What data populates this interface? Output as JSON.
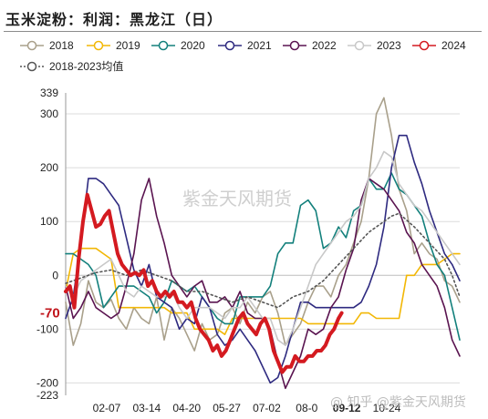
{
  "header": {
    "title": "玉米淀粉：利润：黑龙江（日）"
  },
  "watermark": {
    "center": "紫金天风期货",
    "corner": "@ 知乎 @紫金天风期货"
  },
  "chart_data": {
    "type": "line",
    "title": "玉米淀粉：利润：黑龙江（日）",
    "ylim": [
      -223,
      339
    ],
    "yticks": [
      "339",
      "300",
      "200",
      "100",
      "0",
      "-100",
      "-200",
      "-223"
    ],
    "xticks": [
      "02-07",
      "03-14",
      "04-20",
      "05-27",
      "07-02",
      "08-0",
      "09-12",
      "10-24"
    ],
    "x_range": [
      1,
      365
    ],
    "x_unit": "day of year",
    "legend_position": "top",
    "grid": "horizontal",
    "annotations": [
      {
        "text": "-70",
        "y": -70,
        "color": "#c0141b"
      },
      {
        "text": "09-12",
        "color": "#c0141b"
      }
    ],
    "series": [
      {
        "name": "2018",
        "color": "#a9a08b",
        "style": "solid",
        "x": [
          1,
          8,
          15,
          22,
          29,
          36,
          43,
          50,
          57,
          64,
          71,
          78,
          85,
          92,
          99,
          106,
          113,
          120,
          127,
          134,
          141,
          148,
          155,
          162,
          169,
          176,
          183,
          190,
          197,
          204,
          211,
          218,
          225,
          232,
          239,
          246,
          253,
          260,
          267,
          274,
          281,
          288,
          295,
          302,
          309,
          316,
          323,
          330,
          337,
          344,
          351,
          358,
          365
        ],
        "y": [
          -50,
          -130,
          -90,
          -10,
          -50,
          -60,
          -45,
          -80,
          -100,
          -60,
          -80,
          -90,
          -40,
          -120,
          -60,
          -80,
          -110,
          -140,
          -90,
          -120,
          -110,
          -70,
          -60,
          -90,
          -50,
          -70,
          -40,
          -30,
          -70,
          -130,
          -110,
          -90,
          -50,
          -20,
          -20,
          -40,
          0,
          20,
          60,
          100,
          180,
          300,
          330,
          260,
          160,
          120,
          40,
          60,
          40,
          30,
          -10,
          -20,
          -50
        ]
      },
      {
        "name": "2019",
        "color": "#f2b705",
        "style": "solid",
        "x": [
          1,
          8,
          15,
          22,
          29,
          36,
          43,
          50,
          57,
          64,
          71,
          78,
          85,
          92,
          99,
          106,
          113,
          120,
          127,
          134,
          141,
          148,
          155,
          162,
          169,
          176,
          183,
          190,
          197,
          204,
          211,
          218,
          225,
          232,
          239,
          246,
          253,
          260,
          267,
          274,
          281,
          288,
          295,
          302,
          309,
          316,
          323,
          330,
          337,
          344,
          351,
          358,
          365
        ],
        "y": [
          -30,
          40,
          50,
          50,
          50,
          40,
          30,
          -60,
          -60,
          -60,
          -60,
          -60,
          -60,
          -60,
          -70,
          -70,
          -70,
          -100,
          -100,
          -100,
          -100,
          -110,
          -80,
          -80,
          -80,
          -80,
          -80,
          -80,
          -80,
          -80,
          -80,
          -80,
          -90,
          -90,
          -90,
          -90,
          -90,
          -90,
          -90,
          -70,
          -70,
          -80,
          -80,
          -80,
          -80,
          0,
          0,
          20,
          20,
          20,
          30,
          40,
          40
        ]
      },
      {
        "name": "2020",
        "color": "#13807c",
        "style": "solid",
        "x": [
          1,
          8,
          15,
          22,
          29,
          36,
          43,
          50,
          57,
          64,
          71,
          78,
          85,
          92,
          99,
          106,
          113,
          120,
          127,
          134,
          141,
          148,
          155,
          162,
          169,
          176,
          183,
          190,
          197,
          204,
          211,
          218,
          225,
          232,
          239,
          246,
          253,
          260,
          267,
          274,
          281,
          288,
          295,
          302,
          309,
          316,
          323,
          330,
          337,
          344,
          351,
          358,
          365
        ],
        "y": [
          40,
          40,
          30,
          20,
          0,
          -60,
          -40,
          -20,
          -20,
          -20,
          -30,
          -40,
          -70,
          -50,
          -10,
          -20,
          -30,
          -20,
          -40,
          -60,
          -80,
          -90,
          -90,
          -40,
          -40,
          -40,
          -40,
          -20,
          40,
          60,
          60,
          130,
          140,
          120,
          50,
          60,
          90,
          70,
          120,
          130,
          180,
          160,
          160,
          190,
          160,
          150,
          130,
          110,
          60,
          20,
          0,
          -60,
          -120
        ]
      },
      {
        "name": "2021",
        "color": "#2e2a80",
        "style": "solid",
        "x": [
          1,
          8,
          15,
          22,
          29,
          36,
          43,
          50,
          57,
          64,
          71,
          78,
          85,
          92,
          99,
          106,
          113,
          120,
          127,
          134,
          141,
          148,
          155,
          162,
          169,
          176,
          183,
          190,
          197,
          204,
          211,
          218,
          225,
          232,
          239,
          246,
          253,
          260,
          267,
          274,
          281,
          288,
          295,
          302,
          309,
          316,
          323,
          330,
          337,
          344,
          351,
          358,
          365
        ],
        "y": [
          -80,
          -40,
          60,
          180,
          180,
          170,
          150,
          130,
          70,
          10,
          -20,
          20,
          -40,
          -50,
          -60,
          -100,
          -80,
          -90,
          -40,
          -60,
          -110,
          -130,
          -120,
          -100,
          -120,
          -140,
          -170,
          -200,
          -190,
          -150,
          -100,
          -50,
          -50,
          -60,
          -60,
          -60,
          -60,
          -60,
          -60,
          -50,
          -20,
          20,
          90,
          200,
          260,
          260,
          210,
          170,
          120,
          80,
          40,
          20,
          -10
        ]
      },
      {
        "name": "2022",
        "color": "#5a1450",
        "style": "solid",
        "x": [
          1,
          8,
          15,
          22,
          29,
          36,
          43,
          50,
          57,
          64,
          71,
          78,
          85,
          92,
          99,
          106,
          113,
          120,
          127,
          134,
          141,
          148,
          155,
          162,
          169,
          176,
          183,
          190,
          197,
          204,
          211,
          218,
          225,
          232,
          239,
          246,
          253,
          260,
          267,
          274,
          281,
          288,
          295,
          302,
          309,
          316,
          323,
          330,
          337,
          344,
          351,
          358,
          365
        ],
        "y": [
          -20,
          -80,
          -60,
          -30,
          -60,
          -70,
          -80,
          -70,
          -20,
          40,
          140,
          180,
          110,
          60,
          0,
          -20,
          -40,
          -20,
          -10,
          -50,
          -50,
          -40,
          -60,
          -30,
          -70,
          -80,
          -80,
          -100,
          -160,
          -210,
          -180,
          -150,
          -100,
          -110,
          -100,
          -60,
          -40,
          10,
          50,
          140,
          180,
          170,
          160,
          140,
          120,
          80,
          60,
          20,
          0,
          -20,
          -60,
          -120,
          -150
        ]
      },
      {
        "name": "2023",
        "color": "#c8c8c8",
        "style": "solid",
        "x": [
          1,
          8,
          15,
          22,
          29,
          36,
          43,
          50,
          57,
          64,
          71,
          78,
          85,
          92,
          99,
          106,
          113,
          120,
          127,
          134,
          141,
          148,
          155,
          162,
          169,
          176,
          183,
          190,
          197,
          204,
          211,
          218,
          225,
          232,
          239,
          246,
          253,
          260,
          267,
          274,
          281,
          288,
          295,
          302,
          309,
          316,
          323,
          330,
          337,
          344,
          351,
          358,
          365
        ],
        "y": [
          -20,
          -40,
          -10,
          0,
          10,
          20,
          30,
          0,
          -30,
          -40,
          -20,
          -30,
          -40,
          -40,
          -30,
          -60,
          -80,
          -60,
          -60,
          -60,
          -70,
          -80,
          -60,
          -60,
          -40,
          -60,
          -80,
          -80,
          -120,
          -130,
          -100,
          -60,
          -20,
          20,
          40,
          60,
          80,
          100,
          110,
          130,
          180,
          200,
          230,
          220,
          170,
          150,
          130,
          120,
          100,
          80,
          60,
          40,
          20
        ]
      },
      {
        "name": "2024",
        "color": "#d41a20",
        "style": "bold",
        "x": [
          1,
          5,
          9,
          13,
          17,
          21,
          25,
          29,
          33,
          37,
          41,
          45,
          49,
          53,
          57,
          61,
          65,
          69,
          73,
          77,
          81,
          85,
          89,
          93,
          97,
          101,
          105,
          109,
          113,
          117,
          121,
          125,
          129,
          133,
          137,
          141,
          145,
          149,
          153,
          157,
          161,
          165,
          169,
          173,
          177,
          181,
          185,
          189,
          193,
          197,
          201,
          205,
          209,
          213,
          217,
          221,
          225,
          229,
          233,
          237,
          241,
          245,
          249,
          253,
          256
        ],
        "y": [
          -30,
          -20,
          -60,
          30,
          100,
          150,
          120,
          90,
          95,
          110,
          120,
          80,
          40,
          20,
          10,
          0,
          5,
          0,
          10,
          -20,
          -10,
          -30,
          -40,
          -30,
          -40,
          -30,
          -50,
          -50,
          -60,
          -50,
          -80,
          -100,
          -110,
          -120,
          -140,
          -130,
          -150,
          -140,
          -120,
          -100,
          -80,
          -70,
          -90,
          -100,
          -110,
          -90,
          -80,
          -100,
          -140,
          -160,
          -180,
          -170,
          -170,
          -150,
          -160,
          -160,
          -150,
          -150,
          -140,
          -140,
          -130,
          -110,
          -100,
          -80,
          -70
        ]
      },
      {
        "name": "2018-2023均值",
        "color": "#555555",
        "style": "dotted",
        "x": [
          1,
          15,
          29,
          43,
          57,
          71,
          85,
          99,
          113,
          127,
          141,
          155,
          169,
          183,
          197,
          211,
          225,
          239,
          253,
          267,
          281,
          295,
          302,
          309,
          323,
          337,
          351,
          358,
          365
        ],
        "y": [
          -15,
          -5,
          5,
          10,
          0,
          10,
          0,
          -10,
          -30,
          -30,
          -40,
          -50,
          -40,
          -50,
          -60,
          -40,
          -30,
          -10,
          20,
          50,
          80,
          100,
          110,
          115,
          90,
          60,
          30,
          0,
          -40
        ]
      }
    ]
  }
}
